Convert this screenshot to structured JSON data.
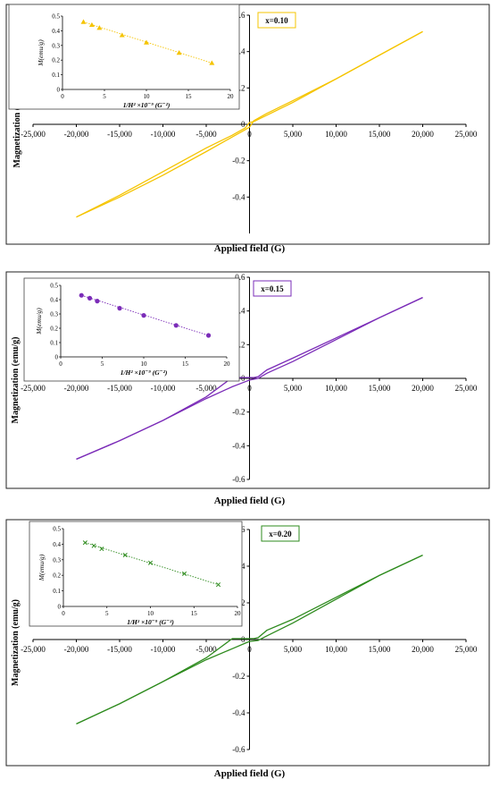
{
  "chart_data": [
    {
      "type": "line",
      "panel": "x=0.10",
      "legend_label": "x=0.10",
      "color": "#F5C400",
      "xlabel": "Applied field (G)",
      "ylabel": "Magnetization (emu/g)",
      "xlim": [
        -25000,
        25000
      ],
      "ylim": [
        -0.6,
        0.6
      ],
      "x_ticks": [
        "-25,000",
        "-20,000",
        "-15,000",
        "-10,000",
        "-5,000",
        "0",
        "5,000",
        "10,000",
        "15,000",
        "20,000",
        "25,000"
      ],
      "y_ticks": [
        "-0.4",
        "-0.2",
        "0",
        "0.2",
        "0.4",
        "0.6"
      ],
      "y_ticks_values": [
        -0.4,
        -0.2,
        0,
        0.2,
        0.4,
        0.6
      ],
      "series": [
        {
          "x": [
            -20000,
            -15000,
            -10000,
            -5000,
            -2000,
            -500,
            0,
            500,
            2000,
            5000,
            10000,
            15000,
            20000
          ],
          "y": [
            -0.51,
            -0.4,
            -0.28,
            -0.15,
            -0.07,
            -0.03,
            -0.015,
            0.02,
            0.06,
            0.13,
            0.25,
            0.38,
            0.51
          ]
        },
        {
          "x": [
            20000,
            15000,
            10000,
            5000,
            2000,
            500,
            0,
            -500,
            -2000,
            -5000,
            -10000,
            -15000,
            -20000
          ],
          "y": [
            0.51,
            0.38,
            0.25,
            0.12,
            0.05,
            0.015,
            0.01,
            -0.02,
            -0.06,
            -0.13,
            -0.26,
            -0.39,
            -0.51
          ]
        }
      ],
      "inset": {
        "xlabel": "1/H² ×10⁻⁹ (G⁻²)",
        "ylabel": "M(emu/g)",
        "xlim": [
          0,
          20
        ],
        "ylim": [
          0,
          0.5
        ],
        "x_ticks": [
          "0",
          "5",
          "10",
          "15",
          "20"
        ],
        "y_ticks": [
          "0",
          "0.1",
          "0.2",
          "0.3",
          "0.4",
          "0.5"
        ],
        "marker": "triangle",
        "x": [
          2.5,
          3.5,
          4.4,
          7.1,
          10,
          13.9,
          17.8
        ],
        "y": [
          0.46,
          0.44,
          0.42,
          0.37,
          0.32,
          0.25,
          0.18
        ]
      }
    },
    {
      "type": "line",
      "panel": "x=0.15",
      "legend_label": "x=0.15",
      "color": "#7B2CB8",
      "xlabel": "Applied field (G)",
      "ylabel": "Magnetization (emu/g)",
      "xlim": [
        -25000,
        25000
      ],
      "ylim": [
        -0.6,
        0.6
      ],
      "x_ticks": [
        "-25,000",
        "-20,000",
        "-15,000",
        "-10,000",
        "-5,000",
        "0",
        "5,000",
        "10,000",
        "15,000",
        "20,000",
        "25,000"
      ],
      "y_ticks": [
        "-0.6",
        "-0.4",
        "-0.2",
        "0",
        "0.2",
        "0.4",
        "0.6"
      ],
      "y_ticks_values": [
        -0.6,
        -0.4,
        -0.2,
        0,
        0.2,
        0.4,
        0.6
      ],
      "series": [
        {
          "x": [
            -20000,
            -15000,
            -10000,
            -5000,
            -2000,
            -500,
            0,
            1000,
            2000,
            5000,
            10000,
            15000,
            20000
          ],
          "y": [
            -0.48,
            -0.37,
            -0.25,
            -0.12,
            -0.05,
            -0.02,
            -0.01,
            0.0,
            0.03,
            0.1,
            0.23,
            0.36,
            0.48
          ]
        },
        {
          "x": [
            20000,
            15000,
            10000,
            5000,
            2000,
            1000,
            500,
            0,
            -2000,
            -5000,
            -10000,
            -15000,
            -20000
          ],
          "y": [
            0.48,
            0.36,
            0.24,
            0.12,
            0.05,
            0.01,
            0.005,
            0.005,
            0.005,
            -0.11,
            -0.25,
            -0.37,
            -0.48
          ]
        }
      ],
      "inset": {
        "xlabel": "1/H² ×10⁻⁹ (G⁻²)",
        "ylabel": "M(emu/g)",
        "xlim": [
          0,
          20
        ],
        "ylim": [
          0,
          0.5
        ],
        "x_ticks": [
          "0",
          "5",
          "10",
          "15",
          "20"
        ],
        "y_ticks": [
          "0",
          "0.1",
          "0.2",
          "0.3",
          "0.4",
          "0.5"
        ],
        "marker": "circle",
        "x": [
          2.5,
          3.5,
          4.4,
          7.1,
          10,
          13.9,
          17.8
        ],
        "y": [
          0.43,
          0.41,
          0.39,
          0.34,
          0.29,
          0.22,
          0.15
        ]
      }
    },
    {
      "type": "line",
      "panel": "x=0.20",
      "legend_label": "x=0.20",
      "color": "#2E8B1E",
      "xlabel": "Applied field (G)",
      "ylabel": "Magnetization (emu/g)",
      "xlim": [
        -25000,
        25000
      ],
      "ylim": [
        -0.6,
        0.6
      ],
      "x_ticks": [
        "-25,000",
        "-20,000",
        "-15,000",
        "-10,000",
        "-5,000",
        "0",
        "5,000",
        "10,000",
        "15,000",
        "20,000",
        "25,000"
      ],
      "y_ticks": [
        "-0.6",
        "-0.4",
        "-0.2",
        "0",
        "0.2",
        "0.4",
        "0.6"
      ],
      "y_ticks_values": [
        -0.6,
        -0.4,
        -0.2,
        0,
        0.2,
        0.4,
        0.6
      ],
      "series": [
        {
          "x": [
            -20000,
            -15000,
            -10000,
            -5000,
            -2000,
            -500,
            0,
            1000,
            2000,
            5000,
            10000,
            15000,
            20000
          ],
          "y": [
            -0.46,
            -0.35,
            -0.23,
            -0.11,
            -0.05,
            -0.02,
            -0.01,
            -0.005,
            0.02,
            0.09,
            0.22,
            0.35,
            0.46
          ]
        },
        {
          "x": [
            20000,
            15000,
            10000,
            5000,
            2000,
            1000,
            500,
            0,
            -2000,
            -5000,
            -10000,
            -15000,
            -20000
          ],
          "y": [
            0.46,
            0.35,
            0.23,
            0.11,
            0.05,
            0.01,
            0.005,
            0.005,
            0.005,
            -0.1,
            -0.23,
            -0.35,
            -0.46
          ]
        }
      ],
      "inset": {
        "xlabel": "1/H² ×10⁻⁹ (G⁻²)",
        "ylabel": "M(emu/g)",
        "xlim": [
          0,
          20
        ],
        "ylim": [
          0,
          0.5
        ],
        "x_ticks": [
          "0",
          "5",
          "10",
          "15",
          "20"
        ],
        "y_ticks": [
          "0",
          "0.1",
          "0.2",
          "0.3",
          "0.4",
          "0.5"
        ],
        "marker": "x",
        "x": [
          2.5,
          3.5,
          4.4,
          7.1,
          10,
          13.9,
          17.8
        ],
        "y": [
          0.41,
          0.39,
          0.37,
          0.33,
          0.28,
          0.21,
          0.14
        ]
      }
    }
  ]
}
